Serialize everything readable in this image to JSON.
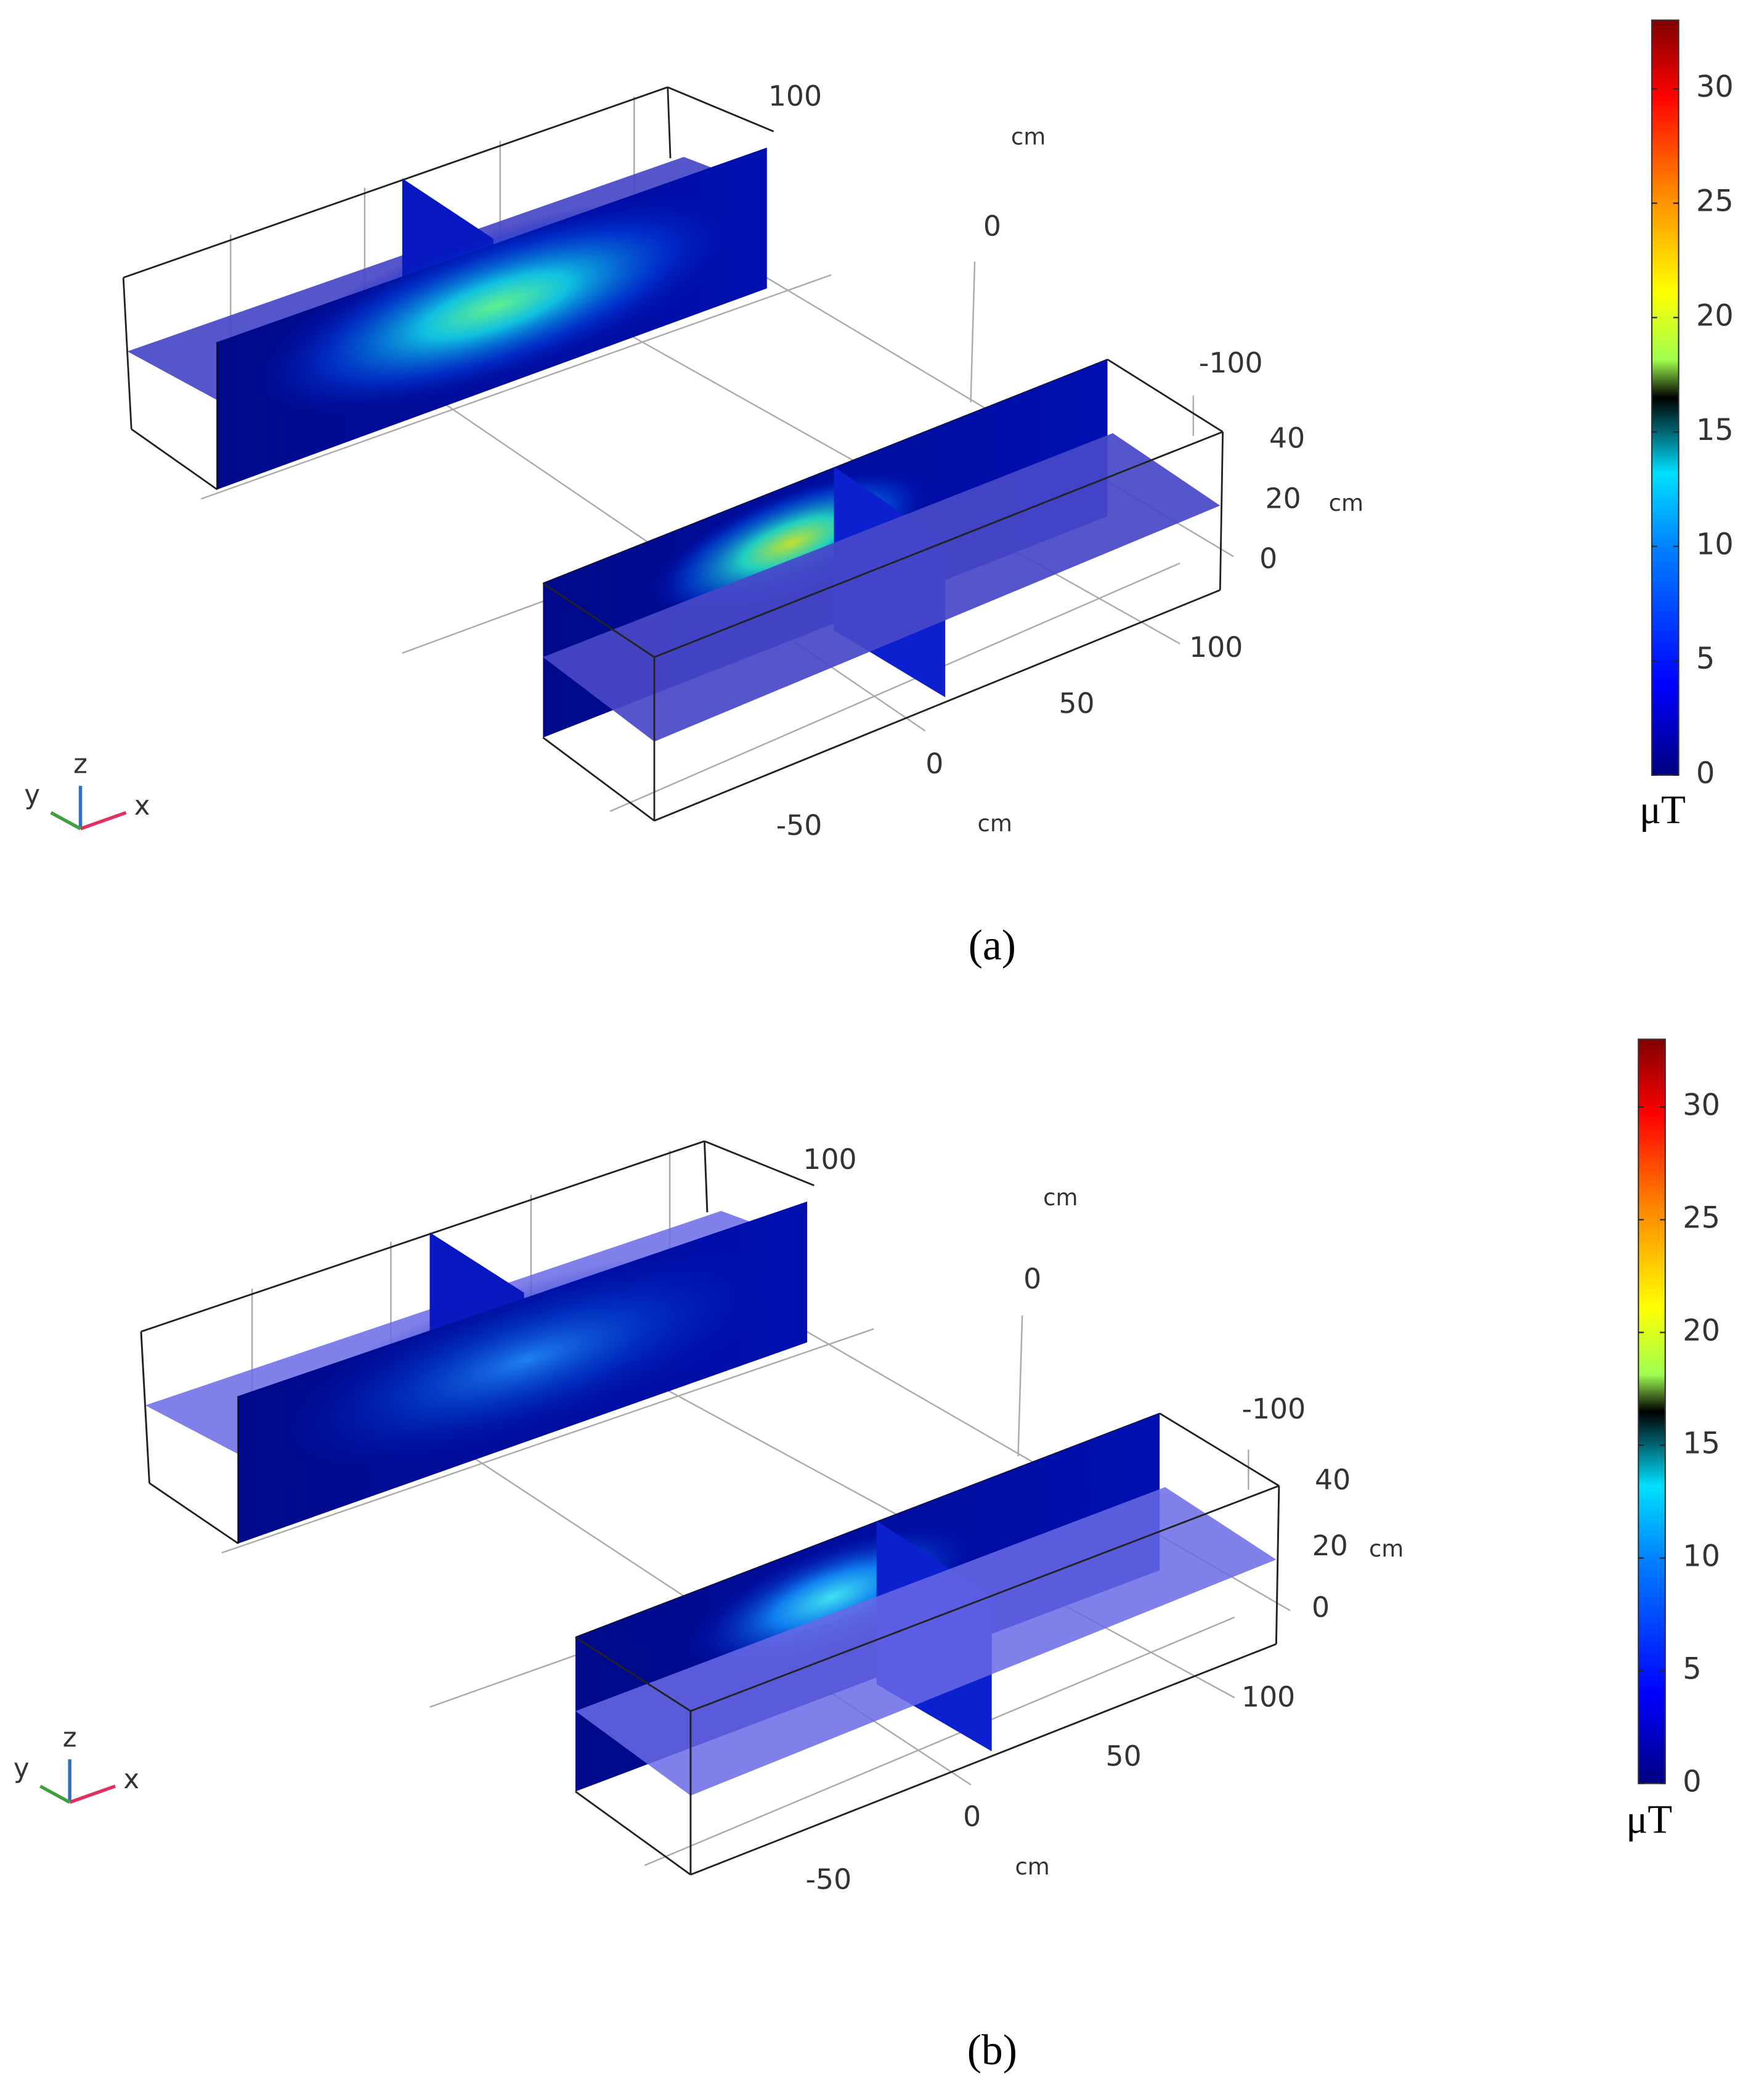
{
  "panels": [
    {
      "label": "(a)",
      "axes": {
        "x_ticks": [
          -50,
          0,
          50,
          100
        ],
        "x_unit": "cm",
        "y_ticks": [
          100,
          0,
          -100
        ],
        "y_unit": "cm",
        "z_ticks": [
          0,
          20,
          40
        ],
        "z_unit": "cm"
      },
      "triad": {
        "x": "x",
        "y": "y",
        "z": "z"
      },
      "colorbar": {
        "unit": "μT",
        "lim": [
          0,
          33
        ],
        "ticks": [
          0,
          5,
          10,
          15,
          20,
          25,
          30
        ]
      }
    },
    {
      "label": "(b)",
      "axes": {
        "x_ticks": [
          -50,
          0,
          50,
          100
        ],
        "x_unit": "cm",
        "y_ticks": [
          100,
          0,
          -100
        ],
        "y_unit": "cm",
        "z_ticks": [
          0,
          20,
          40
        ],
        "z_unit": "cm"
      },
      "triad": {
        "x": "x",
        "y": "y",
        "z": "z"
      },
      "colorbar": {
        "unit": "μT",
        "lim": [
          0,
          33
        ],
        "ticks": [
          0,
          5,
          10,
          15,
          20,
          25,
          30
        ]
      }
    }
  ]
}
